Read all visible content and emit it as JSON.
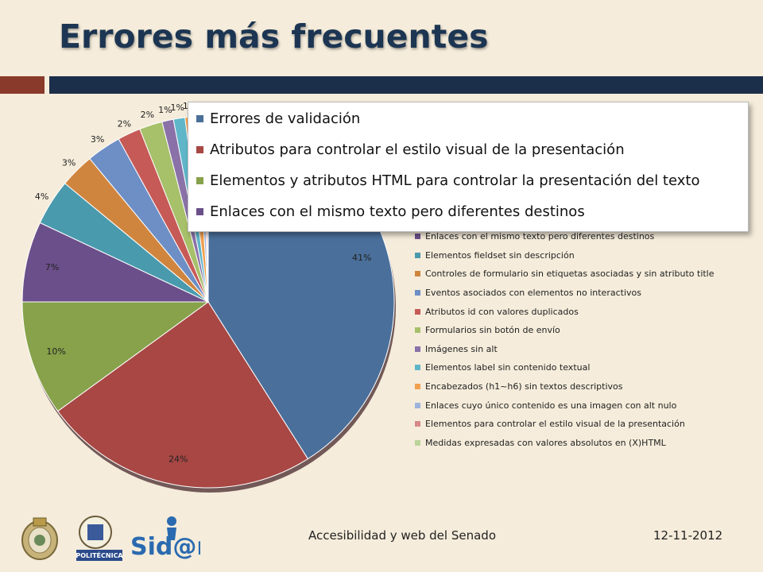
{
  "title": "Errores más frecuentes",
  "footer": {
    "text": "Accesibilidad y web del Senado",
    "date": "12-11-2012"
  },
  "logos": {
    "upm": "POLITÉCNICA",
    "sidar": "Sid@r"
  },
  "colors": {
    "title": "#1c3552",
    "accent_red": "#8a3a2a",
    "accent_blue": "#1c2f4a",
    "background": "#f5ecdb"
  },
  "popup_legend": [
    {
      "label": "Errores de validación",
      "color": "#4a6f9a"
    },
    {
      "label": "Atributos para controlar el estilo visual de la presentación",
      "color": "#a84744"
    },
    {
      "label": "Elementos y atributos HTML para controlar la presentación del texto",
      "color": "#87a24a"
    },
    {
      "label": "Enlaces con el mismo texto pero diferentes destinos",
      "color": "#6b4f8a"
    }
  ],
  "chart_data": {
    "type": "pie",
    "title": "",
    "slices": [
      {
        "label": "Errores de validación",
        "value": 41,
        "display": "41%",
        "color": "#4a6f9a"
      },
      {
        "label": "Atributos para controlar el estilo visual de la presentación",
        "value": 24,
        "display": "24%",
        "color": "#a84744"
      },
      {
        "label": "Elementos y atributos HTML para controlar la presentación del texto",
        "value": 10,
        "display": "10%",
        "color": "#87a24a"
      },
      {
        "label": "Enlaces con el mismo texto pero diferentes destinos",
        "value": 7,
        "display": "7%",
        "color": "#6b4f8a"
      },
      {
        "label": "Elementos fieldset sin descripción",
        "value": 4,
        "display": "4%",
        "color": "#4a9aad"
      },
      {
        "label": "Controles de formulario sin etiquetas asociadas y sin atributo title",
        "value": 3,
        "display": "3%",
        "color": "#d0853f"
      },
      {
        "label": "Eventos asociados con elementos no interactivos",
        "value": 3,
        "display": "3%",
        "color": "#6d8fc5"
      },
      {
        "label": "Atributos id con valores duplicados",
        "value": 2,
        "display": "2%",
        "color": "#c65a57"
      },
      {
        "label": "Formularios sin botón de envío",
        "value": 2,
        "display": "2%",
        "color": "#a7c06a"
      },
      {
        "label": "Imágenes sin alt",
        "value": 1,
        "display": "1%",
        "color": "#8a72a8"
      },
      {
        "label": "Elementos label sin contenido textual",
        "value": 1,
        "display": "1%",
        "color": "#5fb6c9"
      },
      {
        "label": "Encabezados (h1~h6) sin textos descriptivos",
        "value": 1,
        "display": "1%",
        "color": "#f0a050"
      },
      {
        "label": "Enlaces cuyo único contenido es una imagen con alt nulo",
        "value": 0.5,
        "display": "",
        "color": "#9db4dc"
      },
      {
        "label": "Elementos para controlar el estilo visual de la presentación",
        "value": 0.3,
        "display": "",
        "color": "#d68a88"
      },
      {
        "label": "Medidas expresadas con valores absolutos en (X)HTML",
        "value": 0.2,
        "display": "",
        "color": "#bcd39a"
      }
    ],
    "legend_visible": [
      "Enlaces con el mismo texto pero diferentes destinos",
      "Elementos fieldset sin descripción",
      "Controles de formulario sin etiquetas asociadas y sin atributo title",
      "Eventos asociados con elementos no interactivos",
      "Atributos id con valores duplicados",
      "Formularios sin botón de envío",
      "Imágenes sin alt",
      "Elementos label sin contenido textual",
      "Encabezados (h1~h6) sin textos descriptivos",
      "Enlaces cuyo único contenido es una imagen con alt nulo",
      "Elementos para controlar el estilo visual de la presentación",
      "Medidas expresadas con valores absolutos en (X)HTML"
    ],
    "legend_placement": "right"
  }
}
